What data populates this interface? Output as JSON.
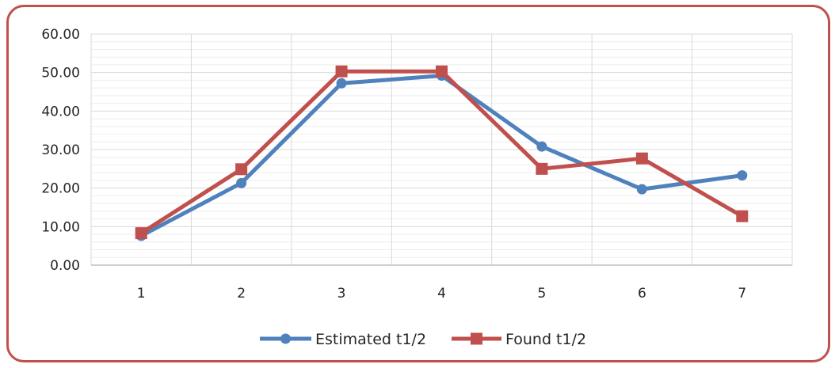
{
  "chart_data": {
    "type": "line",
    "title": "",
    "xlabel": "",
    "ylabel": "",
    "categories": [
      "1",
      "2",
      "3",
      "4",
      "5",
      "6",
      "7"
    ],
    "ylim": [
      0,
      60
    ],
    "ytick_labels": [
      "0.00",
      "10.00",
      "20.00",
      "30.00",
      "40.00",
      "50.00",
      "60.00"
    ],
    "grid": true,
    "legend_position": "bottom",
    "series": [
      {
        "name": "Estimated t1/2",
        "marker": "circle",
        "color": "#4f81bd",
        "values": [
          7.6,
          21.3,
          47.2,
          49.2,
          30.8,
          19.7,
          23.3
        ]
      },
      {
        "name": "Found t1/2",
        "marker": "square",
        "color": "#c0504d",
        "values": [
          8.3,
          24.9,
          50.3,
          50.3,
          25.0,
          27.7,
          12.7
        ]
      }
    ]
  },
  "colors": {
    "border": "#c0504d",
    "grid": "#d9d9d9",
    "axis": "#bfbfbf"
  }
}
